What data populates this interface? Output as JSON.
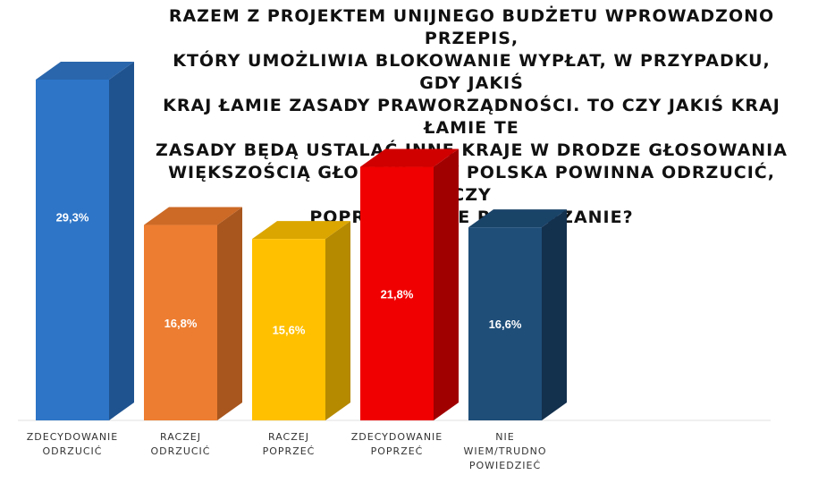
{
  "chart_data": {
    "type": "bar",
    "title": "RAZEM Z PROJEKTEM UNIJNEGO BUDŻETU WPROWADZONO PRZEPIS,\nKTÓRY UMOŻLIWIA BLOKOWANIE WYPŁAT, W PRZYPADKU, GDY JAKIŚ\nKRAJ ŁAMIE ZASADY PRAWORZĄDNOŚCI. TO CZY JAKIŚ KRAJ ŁAMIE TE\nZASADY BĘDĄ USTALAĆ INNE KRAJE W DRODZE GŁOSOWANIA\nWIĘKSZOŚCIĄ GŁOSÓW. CZY POLSKA POWINNA ODRZUCIĆ, CZY\nPOPRZEĆ TAKIE ROZWIĄZANIE?",
    "categories": [
      "ZDECYDOWANIE\nODRZUCIĆ",
      "RACZEJ\nODRZUCIĆ",
      "RACZEJ\nPOPRZEĆ",
      "ZDECYDOWANIE\nPOPRZEĆ",
      "NIE\nWIEM/TRUDNO\nPOWIEDZIEĆ"
    ],
    "values": [
      29.3,
      16.8,
      15.6,
      21.8,
      16.6
    ],
    "value_labels": [
      "29,3%",
      "16,8%",
      "15,6%",
      "21,8%",
      "16,6%"
    ],
    "colors": [
      "#2E75C7",
      "#ED7D31",
      "#FFC000",
      "#F00000",
      "#1F4E79"
    ],
    "side_colors": [
      "#1F5390",
      "#A8561E",
      "#B58900",
      "#A00000",
      "#13304D"
    ],
    "top_colors": [
      "#2A66AC",
      "#CC6A26",
      "#DCA600",
      "#D00000",
      "#1A4368"
    ],
    "ylim": [
      0,
      29.3
    ],
    "grid": false,
    "legend": "none"
  }
}
